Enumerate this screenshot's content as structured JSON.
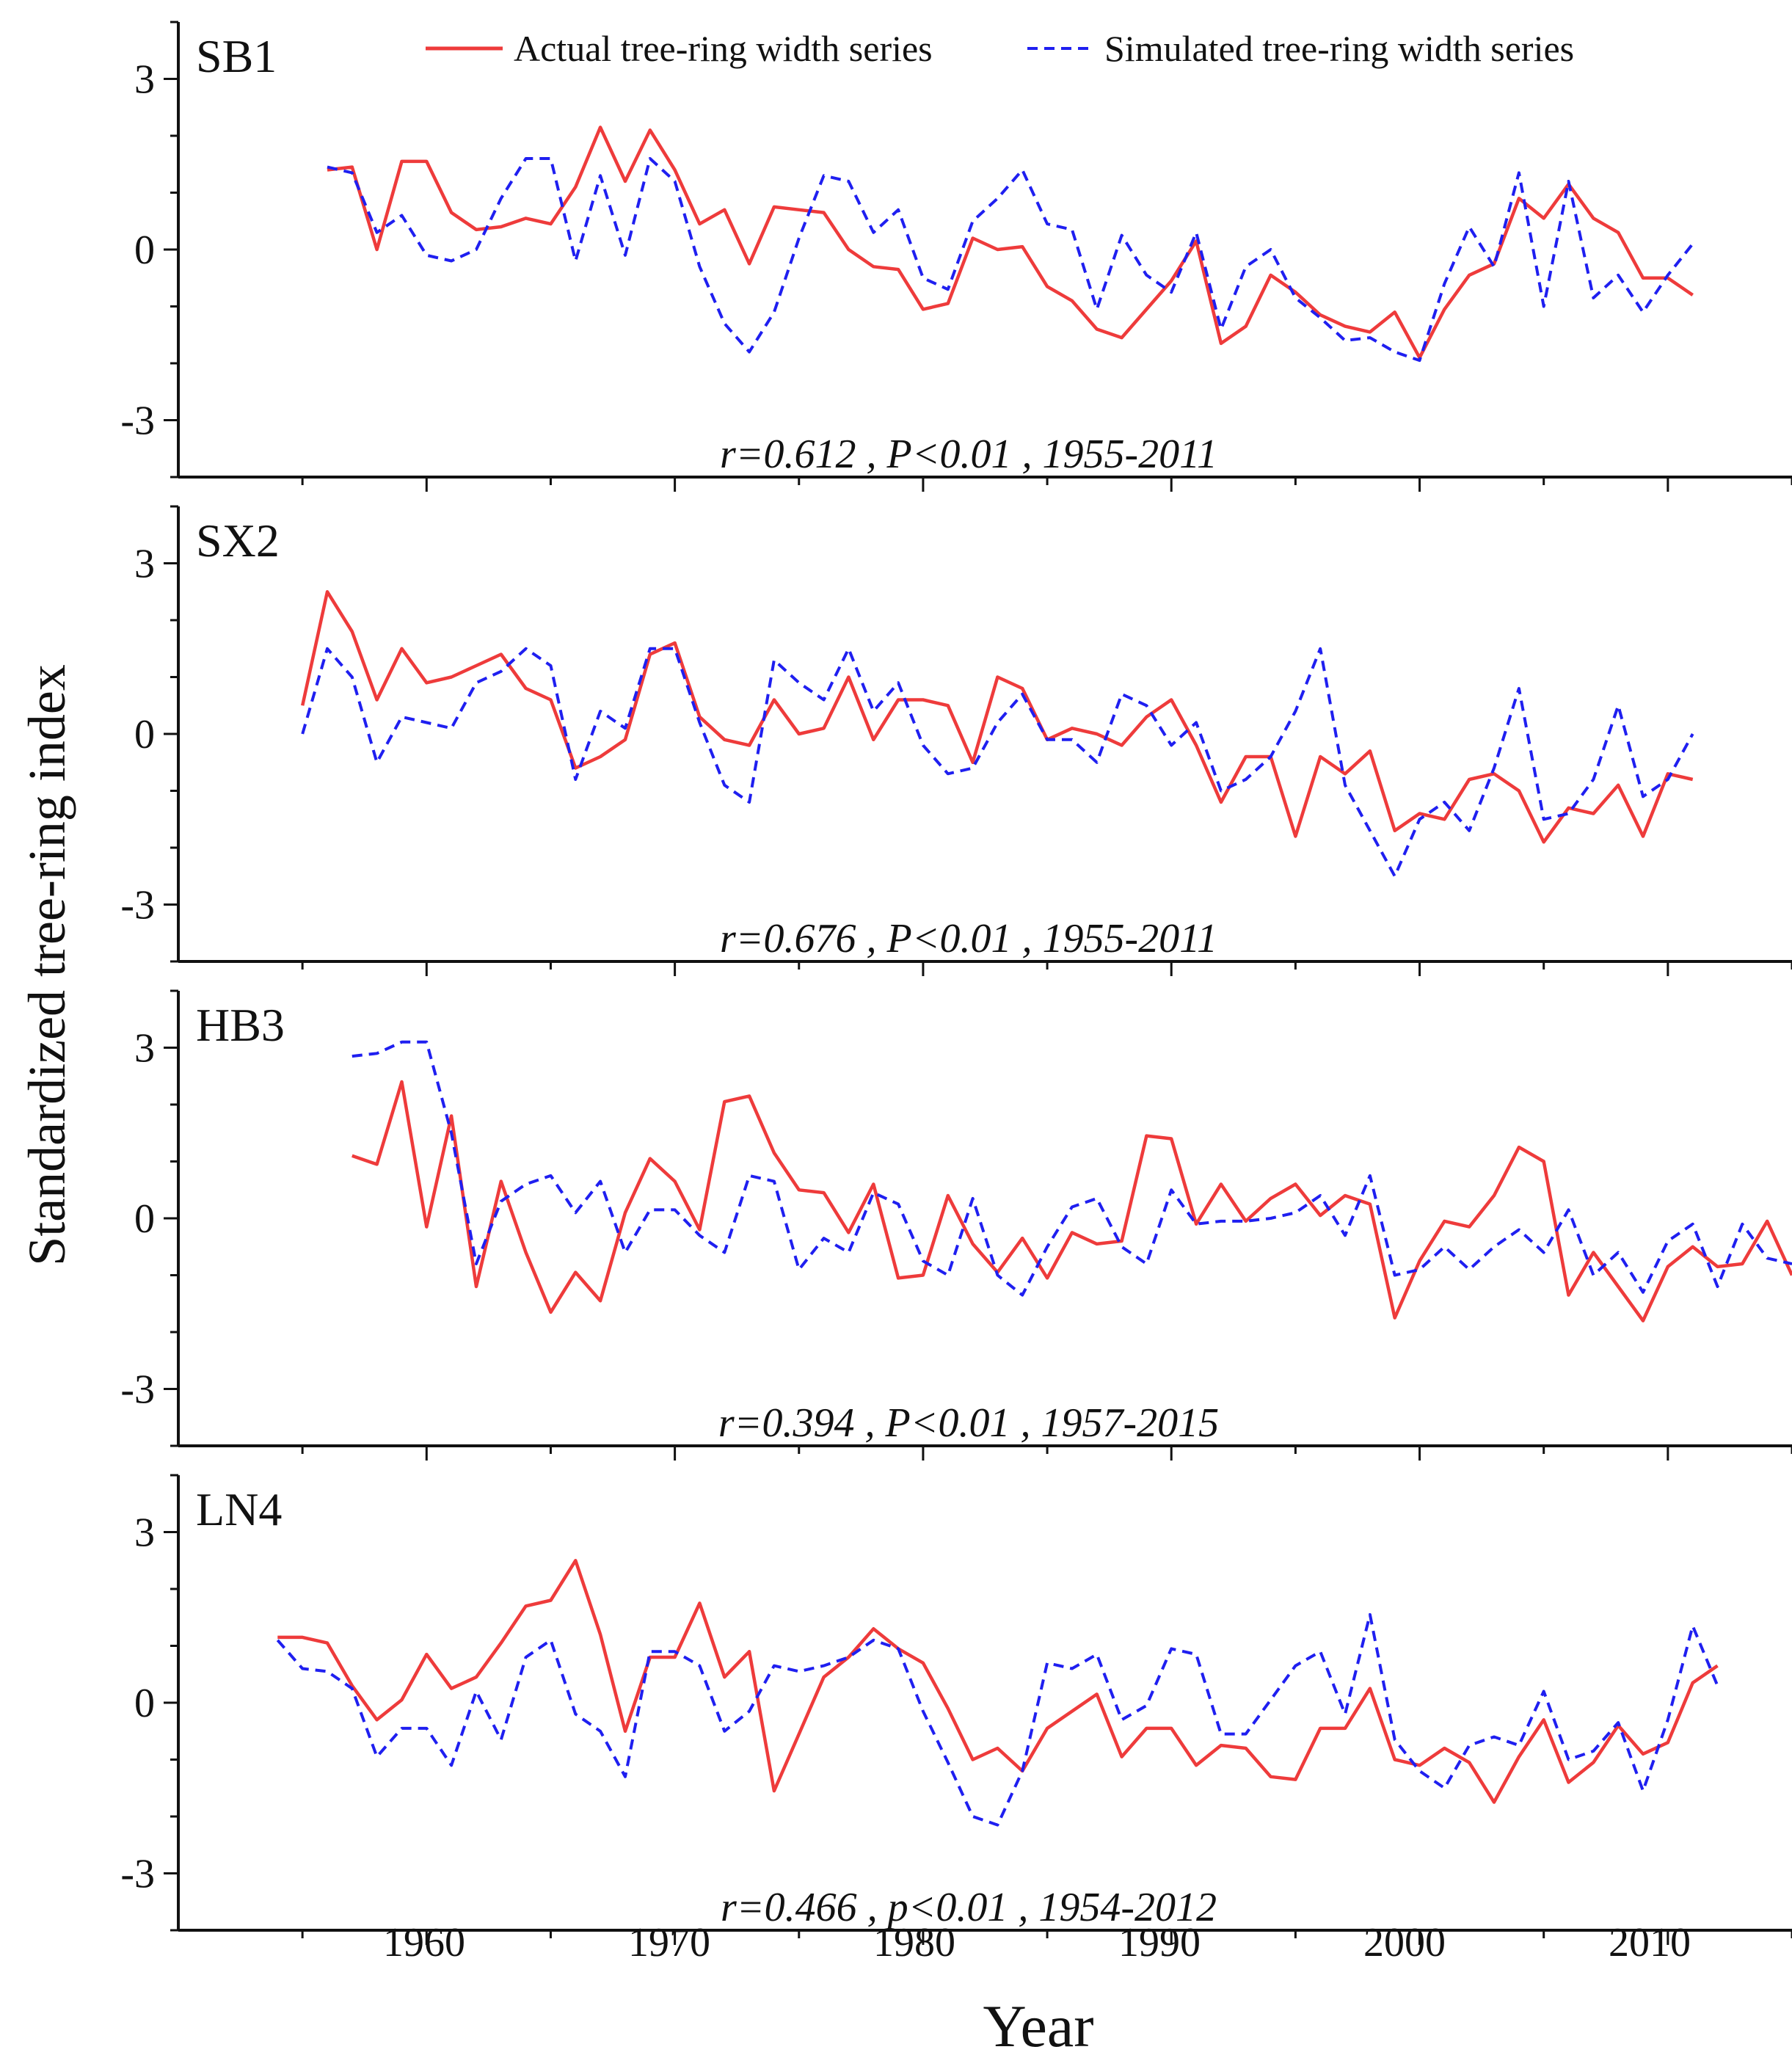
{
  "figure": {
    "ylabel": "Standardized tree-ring index",
    "xlabel": "Year",
    "x_ticks": [
      "1960",
      "1970",
      "1980",
      "1990",
      "2000",
      "2010"
    ],
    "y_ticks": [
      "3",
      "0",
      "-3"
    ]
  },
  "legend": {
    "actual": "Actual tree-ring width series",
    "simulated": "Simulated tree-ring width series"
  },
  "colors": {
    "actual": "#ee3b3b",
    "simulated": "#1f1ff0"
  },
  "chart_data": [
    {
      "type": "line",
      "title": "SB1",
      "stats": "r=0.612 , P<0.01 , 1955-2011",
      "xlim": [
        1950,
        2015
      ],
      "ylim": [
        -4,
        4
      ],
      "series": [
        {
          "name": "Actual tree-ring width series",
          "x": [
            1956,
            1957,
            1958,
            1959,
            1960,
            1961,
            1962,
            1963,
            1964,
            1965,
            1966,
            1967,
            1968,
            1969,
            1970,
            1971,
            1972,
            1973,
            1974,
            1975,
            1976,
            1977,
            1978,
            1979,
            1980,
            1981,
            1982,
            1983,
            1984,
            1985,
            1986,
            1987,
            1988,
            1989,
            1990,
            1991,
            1992,
            1993,
            1994,
            1995,
            1996,
            1997,
            1998,
            1999,
            2000,
            2001,
            2002,
            2003,
            2004,
            2005,
            2006,
            2007,
            2008,
            2009,
            2010,
            2011
          ],
          "values": [
            1.4,
            1.45,
            0,
            1.55,
            1.55,
            0.65,
            0.35,
            0.4,
            0.55,
            0.45,
            1.1,
            2.15,
            1.2,
            2.1,
            1.4,
            0.45,
            0.7,
            -0.25,
            0.75,
            0.7,
            0.65,
            0,
            -0.3,
            -0.35,
            -1.05,
            -0.95,
            0.2,
            0,
            0.05,
            -0.65,
            -0.9,
            -1.4,
            -1.55,
            -1.05,
            -0.55,
            0.15,
            -1.65,
            -1.35,
            -0.45,
            -0.75,
            -1.15,
            -1.35,
            -1.45,
            -1.1,
            -1.9,
            -1.05,
            -0.45,
            -0.25,
            0.9,
            0.55,
            1.15,
            0.55,
            0.3,
            -0.5,
            -0.5,
            -0.8
          ]
        },
        {
          "name": "Simulated tree-ring width series",
          "x": [
            1956,
            1957,
            1958,
            1959,
            1960,
            1961,
            1962,
            1963,
            1964,
            1965,
            1966,
            1967,
            1968,
            1969,
            1970,
            1971,
            1972,
            1973,
            1974,
            1975,
            1976,
            1977,
            1978,
            1979,
            1980,
            1981,
            1982,
            1983,
            1984,
            1985,
            1986,
            1987,
            1988,
            1989,
            1990,
            1991,
            1992,
            1993,
            1994,
            1995,
            1996,
            1997,
            1998,
            1999,
            2000,
            2001,
            2002,
            2003,
            2004,
            2005,
            2006,
            2007,
            2008,
            2009,
            2010,
            2011
          ],
          "values": [
            1.45,
            1.35,
            0.3,
            0.6,
            -0.1,
            -0.2,
            0,
            0.9,
            1.6,
            1.6,
            -0.2,
            1.3,
            -0.1,
            1.6,
            1.2,
            -0.3,
            -1.3,
            -1.8,
            -1.1,
            0.2,
            1.3,
            1.2,
            0.3,
            0.7,
            -0.5,
            -0.7,
            0.5,
            0.9,
            1.4,
            0.45,
            0.35,
            -1.05,
            0.25,
            -0.45,
            -0.75,
            0.3,
            -1.4,
            -0.3,
            0,
            -0.85,
            -1.2,
            -1.6,
            -1.55,
            -1.8,
            -1.95,
            -0.6,
            0.4,
            -0.3,
            1.35,
            -1,
            1.2,
            -0.85,
            -0.45,
            -1.1,
            -0.45,
            0.1
          ]
        }
      ]
    },
    {
      "type": "line",
      "title": "SX2",
      "stats": "r=0.676 , P<0.01 , 1955-2011",
      "xlim": [
        1950,
        2015
      ],
      "ylim": [
        -4,
        4
      ],
      "series": [
        {
          "name": "Actual tree-ring width series",
          "x": [
            1955,
            1956,
            1957,
            1958,
            1959,
            1960,
            1961,
            1962,
            1963,
            1964,
            1965,
            1966,
            1967,
            1968,
            1969,
            1970,
            1971,
            1972,
            1973,
            1974,
            1975,
            1976,
            1977,
            1978,
            1979,
            1980,
            1981,
            1982,
            1983,
            1984,
            1985,
            1986,
            1987,
            1988,
            1989,
            1990,
            1991,
            1992,
            1993,
            1994,
            1995,
            1996,
            1997,
            1998,
            1999,
            2000,
            2001,
            2002,
            2003,
            2004,
            2005,
            2006,
            2007,
            2008,
            2009,
            2010,
            2011
          ],
          "values": [
            0.5,
            2.5,
            1.8,
            0.6,
            1.5,
            0.9,
            1,
            1.2,
            1.4,
            0.8,
            0.6,
            -0.6,
            -0.4,
            -0.1,
            1.4,
            1.6,
            0.3,
            -0.1,
            -0.2,
            0.6,
            0,
            0.1,
            1,
            -0.1,
            0.6,
            0.6,
            0.5,
            -0.5,
            1,
            0.8,
            -0.1,
            0.1,
            0,
            -0.2,
            0.3,
            0.6,
            -0.2,
            -1.2,
            -0.4,
            -0.4,
            -1.8,
            -0.4,
            -0.7,
            -0.3,
            -1.7,
            -1.4,
            -1.5,
            -0.8,
            -0.7,
            -1,
            -1.9,
            -1.3,
            -1.4,
            -0.9,
            -1.8,
            -0.7,
            -0.8
          ]
        },
        {
          "name": "Simulated tree-ring width series",
          "x": [
            1955,
            1956,
            1957,
            1958,
            1959,
            1960,
            1961,
            1962,
            1963,
            1964,
            1965,
            1966,
            1967,
            1968,
            1969,
            1970,
            1971,
            1972,
            1973,
            1974,
            1975,
            1976,
            1977,
            1978,
            1979,
            1980,
            1981,
            1982,
            1983,
            1984,
            1985,
            1986,
            1987,
            1988,
            1989,
            1990,
            1991,
            1992,
            1993,
            1994,
            1995,
            1996,
            1997,
            1998,
            1999,
            2000,
            2001,
            2002,
            2003,
            2004,
            2005,
            2006,
            2007,
            2008,
            2009,
            2010,
            2011
          ],
          "values": [
            0,
            1.5,
            1,
            -0.5,
            0.3,
            0.2,
            0.1,
            0.9,
            1.1,
            1.5,
            1.2,
            -0.8,
            0.4,
            0.1,
            1.5,
            1.5,
            0.2,
            -0.9,
            -1.2,
            1.3,
            0.9,
            0.6,
            1.5,
            0.4,
            0.9,
            -0.2,
            -0.7,
            -0.6,
            0.2,
            0.7,
            -0.1,
            -0.1,
            -0.5,
            0.7,
            0.5,
            -0.2,
            0.2,
            -1,
            -0.8,
            -0.4,
            0.4,
            1.5,
            -0.9,
            -1.7,
            -2.5,
            -1.5,
            -1.2,
            -1.7,
            -0.6,
            0.8,
            -1.5,
            -1.4,
            -0.8,
            0.5,
            -1.1,
            -0.8,
            0
          ]
        }
      ]
    },
    {
      "type": "line",
      "title": "HB3",
      "stats": "r=0.394 , P<0.01 , 1957-2015",
      "xlim": [
        1950,
        2015
      ],
      "ylim": [
        -4,
        4
      ],
      "series": [
        {
          "name": "Actual tree-ring width series",
          "x": [
            1957,
            1958,
            1959,
            1960,
            1961,
            1962,
            1963,
            1964,
            1965,
            1966,
            1967,
            1968,
            1969,
            1970,
            1971,
            1972,
            1973,
            1974,
            1975,
            1976,
            1977,
            1978,
            1979,
            1980,
            1981,
            1982,
            1983,
            1984,
            1985,
            1986,
            1987,
            1988,
            1989,
            1990,
            1991,
            1992,
            1993,
            1994,
            1995,
            1996,
            1997,
            1998,
            1999,
            2000,
            2001,
            2002,
            2003,
            2004,
            2005,
            2006,
            2007,
            2008,
            2009,
            2010,
            2011,
            2012,
            2013,
            2014,
            2015
          ],
          "values": [
            1.1,
            0.95,
            2.4,
            -0.15,
            1.8,
            -1.2,
            0.65,
            -0.6,
            -1.65,
            -0.95,
            -1.45,
            0.1,
            1.05,
            0.65,
            -0.2,
            2.05,
            2.15,
            1.15,
            0.5,
            0.45,
            -0.25,
            0.6,
            -1.05,
            -1,
            0.4,
            -0.45,
            -0.95,
            -0.35,
            -1.05,
            -0.25,
            -0.45,
            -0.4,
            1.45,
            1.4,
            -0.1,
            0.6,
            -0.05,
            0.35,
            0.6,
            0.05,
            0.4,
            0.25,
            -1.75,
            -0.75,
            -0.05,
            -0.15,
            0.4,
            1.25,
            1,
            -1.35,
            -0.6,
            -1.2,
            -1.8,
            -0.85,
            -0.5,
            -0.85,
            -0.8,
            -0.05,
            -1
          ]
        },
        {
          "name": "Simulated tree-ring width series",
          "x": [
            1957,
            1958,
            1959,
            1960,
            1961,
            1962,
            1963,
            1964,
            1965,
            1966,
            1967,
            1968,
            1969,
            1970,
            1971,
            1972,
            1973,
            1974,
            1975,
            1976,
            1977,
            1978,
            1979,
            1980,
            1981,
            1982,
            1983,
            1984,
            1985,
            1986,
            1987,
            1988,
            1989,
            1990,
            1991,
            1992,
            1993,
            1994,
            1995,
            1996,
            1997,
            1998,
            1999,
            2000,
            2001,
            2002,
            2003,
            2004,
            2005,
            2006,
            2007,
            2008,
            2009,
            2010,
            2011,
            2012,
            2013,
            2014,
            2015
          ],
          "values": [
            2.85,
            2.9,
            3.1,
            3.1,
            1.5,
            -0.8,
            0.3,
            0.6,
            0.75,
            0.1,
            0.65,
            -0.6,
            0.15,
            0.15,
            -0.3,
            -0.6,
            0.75,
            0.65,
            -0.9,
            -0.35,
            -0.6,
            0.45,
            0.25,
            -0.75,
            -1,
            0.35,
            -1,
            -1.35,
            -0.5,
            0.2,
            0.35,
            -0.5,
            -0.8,
            0.5,
            -0.1,
            -0.05,
            -0.05,
            0,
            0.1,
            0.4,
            -0.3,
            0.75,
            -1,
            -0.9,
            -0.5,
            -0.9,
            -0.5,
            -0.2,
            -0.6,
            0.15,
            -1,
            -0.6,
            -1.3,
            -0.4,
            -0.1,
            -1.2,
            -0.1,
            -0.7,
            -0.8
          ]
        }
      ]
    },
    {
      "type": "line",
      "title": "LN4",
      "stats": "r=0.466 , p<0.01 , 1954-2012",
      "xlim": [
        1950,
        2015
      ],
      "ylim": [
        -4,
        4
      ],
      "series": [
        {
          "name": "Actual tree-ring width series",
          "x": [
            1954,
            1955,
            1956,
            1957,
            1958,
            1959,
            1960,
            1961,
            1962,
            1963,
            1964,
            1965,
            1966,
            1967,
            1968,
            1969,
            1970,
            1971,
            1972,
            1973,
            1974,
            1975,
            1976,
            1977,
            1978,
            1979,
            1980,
            1981,
            1982,
            1983,
            1984,
            1985,
            1986,
            1987,
            1988,
            1989,
            1990,
            1991,
            1992,
            1993,
            1994,
            1995,
            1996,
            1997,
            1998,
            1999,
            2000,
            2001,
            2002,
            2003,
            2004,
            2005,
            2006,
            2007,
            2008,
            2009,
            2010,
            2011,
            2012
          ],
          "values": [
            1.15,
            1.15,
            1.05,
            0.3,
            -0.3,
            0.05,
            0.85,
            0.25,
            0.45,
            1.05,
            1.7,
            1.8,
            2.5,
            1.2,
            -0.5,
            0.8,
            0.8,
            1.75,
            0.45,
            0.9,
            -1.55,
            -0.55,
            0.45,
            0.8,
            1.3,
            0.95,
            0.7,
            -0.1,
            -1,
            -0.8,
            -1.2,
            -0.45,
            -0.15,
            0.15,
            -0.95,
            -0.45,
            -0.45,
            -1.1,
            -0.75,
            -0.8,
            -1.3,
            -1.35,
            -0.45,
            -0.45,
            0.25,
            -1,
            -1.1,
            -0.8,
            -1.05,
            -1.75,
            -0.95,
            -0.3,
            -1.4,
            -1.05,
            -0.4,
            -0.9,
            -0.7,
            0.35,
            0.65
          ]
        },
        {
          "name": "Simulated tree-ring width series",
          "x": [
            1954,
            1955,
            1956,
            1957,
            1958,
            1959,
            1960,
            1961,
            1962,
            1963,
            1964,
            1965,
            1966,
            1967,
            1968,
            1969,
            1970,
            1971,
            1972,
            1973,
            1974,
            1975,
            1976,
            1977,
            1978,
            1979,
            1980,
            1981,
            1982,
            1983,
            1984,
            1985,
            1986,
            1987,
            1988,
            1989,
            1990,
            1991,
            1992,
            1993,
            1994,
            1995,
            1996,
            1997,
            1998,
            1999,
            2000,
            2001,
            2002,
            2003,
            2004,
            2005,
            2006,
            2007,
            2008,
            2009,
            2010,
            2011,
            2012
          ],
          "values": [
            1.1,
            0.6,
            0.55,
            0.25,
            -0.95,
            -0.45,
            -0.45,
            -1.1,
            0.2,
            -0.65,
            0.8,
            1.1,
            -0.2,
            -0.5,
            -1.3,
            0.9,
            0.9,
            0.65,
            -0.5,
            -0.15,
            0.65,
            0.55,
            0.65,
            0.8,
            1.1,
            0.95,
            -0.15,
            -1.05,
            -2,
            -2.15,
            -1.2,
            0.7,
            0.6,
            0.85,
            -0.3,
            -0.05,
            0.95,
            0.85,
            -0.55,
            -0.55,
            0.05,
            0.65,
            0.9,
            -0.2,
            1.55,
            -0.65,
            -1.2,
            -1.5,
            -0.75,
            -0.6,
            -0.75,
            0.2,
            -1,
            -0.85,
            -0.35,
            -1.55,
            -0.3,
            1.35,
            0.3
          ]
        }
      ]
    }
  ]
}
